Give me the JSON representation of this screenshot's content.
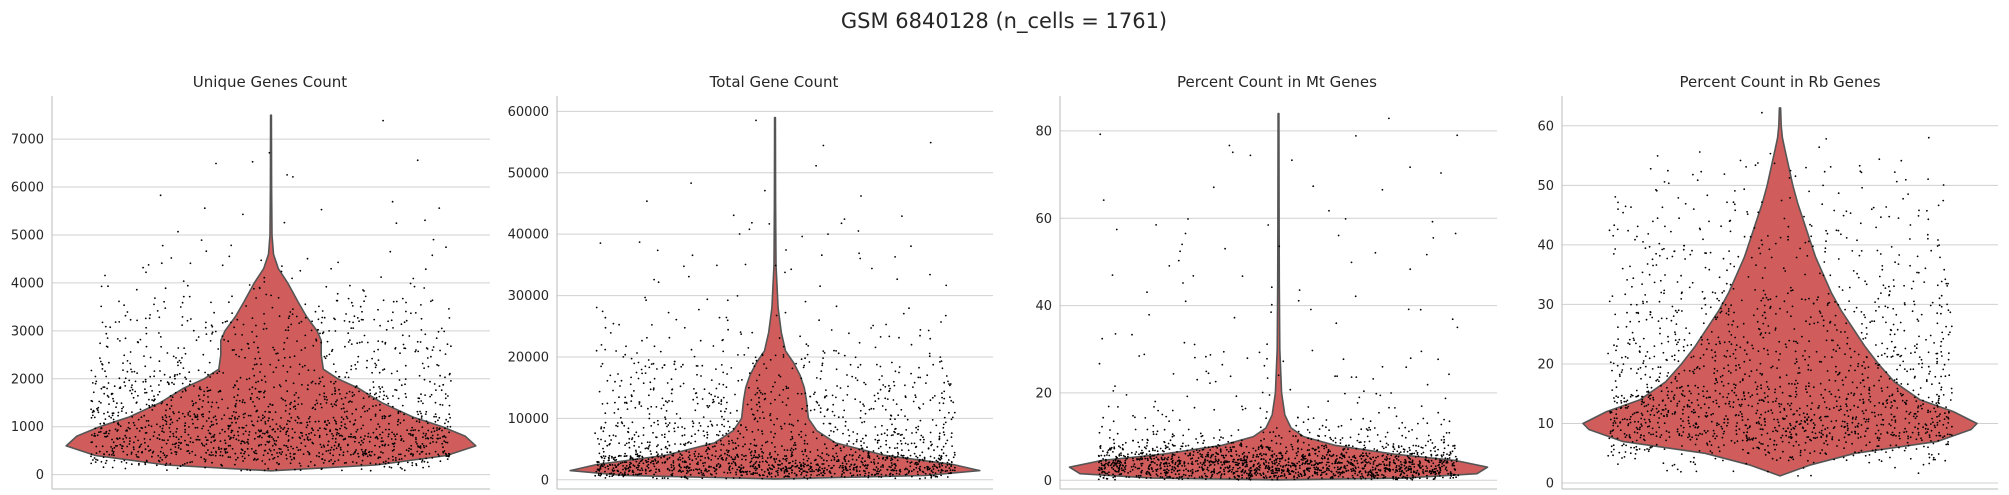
{
  "figure": {
    "suptitle": "GSM 6840128 (n_cells = 1761)",
    "violin_color": "#d05d5b",
    "edge_color": "#555555",
    "grid_color": "#d0d0d0",
    "dot_color": "#000000"
  },
  "chart_data": [
    {
      "type": "violin",
      "title": "Unique Genes Count",
      "ylim": [
        -300,
        7900
      ],
      "yticks": [
        0,
        1000,
        2000,
        3000,
        4000,
        5000,
        6000,
        7000
      ],
      "ytick_labels": [
        "0",
        "1000",
        "2000",
        "3000",
        "4000",
        "5000",
        "6000",
        "7000"
      ],
      "density_profile": [
        [
          80,
          0
        ],
        [
          200,
          0.5
        ],
        [
          400,
          0.84
        ],
        [
          600,
          0.98
        ],
        [
          800,
          0.93
        ],
        [
          1000,
          0.82
        ],
        [
          1200,
          0.68
        ],
        [
          1500,
          0.53
        ],
        [
          1800,
          0.42
        ],
        [
          2000,
          0.32
        ],
        [
          2200,
          0.25
        ],
        [
          2500,
          0.24
        ],
        [
          2800,
          0.24
        ],
        [
          3000,
          0.22
        ],
        [
          3300,
          0.17
        ],
        [
          3600,
          0.13
        ],
        [
          4000,
          0.08
        ],
        [
          4300,
          0.035
        ],
        [
          4600,
          0.012
        ],
        [
          5000,
          0.005
        ],
        [
          6000,
          0.003
        ],
        [
          7500,
          0.002
        ]
      ],
      "max_value": 7500,
      "grid": true
    },
    {
      "type": "violin",
      "title": "Total Gene Count",
      "ylim": [
        -1500,
        62500
      ],
      "yticks": [
        0,
        10000,
        20000,
        30000,
        40000,
        50000,
        60000
      ],
      "ytick_labels": [
        "0",
        "10000",
        "20000",
        "30000",
        "40000",
        "50000",
        "60000"
      ],
      "density_profile": [
        [
          150,
          0
        ],
        [
          700,
          0.72
        ],
        [
          1500,
          0.98
        ],
        [
          2500,
          0.85
        ],
        [
          4000,
          0.52
        ],
        [
          6000,
          0.29
        ],
        [
          8000,
          0.2
        ],
        [
          10000,
          0.16
        ],
        [
          13000,
          0.15
        ],
        [
          15000,
          0.14
        ],
        [
          17000,
          0.12
        ],
        [
          19000,
          0.09
        ],
        [
          21000,
          0.05
        ],
        [
          24000,
          0.03
        ],
        [
          28000,
          0.015
        ],
        [
          35000,
          0.005
        ],
        [
          45000,
          0.003
        ],
        [
          59000,
          0.002
        ]
      ],
      "max_value": 59000,
      "grid": true
    },
    {
      "type": "violin",
      "title": "Percent Count in Mt Genes",
      "ylim": [
        -2,
        88
      ],
      "yticks": [
        0,
        20,
        40,
        60,
        80
      ],
      "ytick_labels": [
        "0",
        "20",
        "40",
        "60",
        "80"
      ],
      "density_profile": [
        [
          0.1,
          0
        ],
        [
          0.5,
          0.6
        ],
        [
          1.5,
          0.95
        ],
        [
          3,
          1
        ],
        [
          4.5,
          0.85
        ],
        [
          6,
          0.55
        ],
        [
          8,
          0.27
        ],
        [
          10,
          0.12
        ],
        [
          12,
          0.06
        ],
        [
          15,
          0.03
        ],
        [
          20,
          0.015
        ],
        [
          30,
          0.006
        ],
        [
          45,
          0.004
        ],
        [
          60,
          0.003
        ],
        [
          84,
          0.002
        ]
      ],
      "max_value": 84,
      "grid": true
    },
    {
      "type": "violin",
      "title": "Percent Count in Rb Genes",
      "ylim": [
        -1,
        65
      ],
      "yticks": [
        0,
        10,
        20,
        30,
        40,
        50,
        60
      ],
      "ytick_labels": [
        "0",
        "10",
        "20",
        "30",
        "40",
        "50",
        "60"
      ],
      "density_profile": [
        [
          1.2,
          0
        ],
        [
          3,
          0.15
        ],
        [
          5,
          0.38
        ],
        [
          7,
          0.8
        ],
        [
          9,
          0.97
        ],
        [
          10,
          1
        ],
        [
          12,
          0.88
        ],
        [
          14,
          0.71
        ],
        [
          17,
          0.58
        ],
        [
          20,
          0.5
        ],
        [
          23,
          0.43
        ],
        [
          26,
          0.37
        ],
        [
          29,
          0.31
        ],
        [
          32,
          0.26
        ],
        [
          35,
          0.22
        ],
        [
          38,
          0.18
        ],
        [
          41,
          0.15
        ],
        [
          44,
          0.12
        ],
        [
          47,
          0.09
        ],
        [
          50,
          0.065
        ],
        [
          53,
          0.045
        ],
        [
          56,
          0.025
        ],
        [
          58,
          0.012
        ],
        [
          60,
          0.006
        ],
        [
          63,
          0.003
        ]
      ],
      "max_value": 63,
      "grid": true
    }
  ]
}
